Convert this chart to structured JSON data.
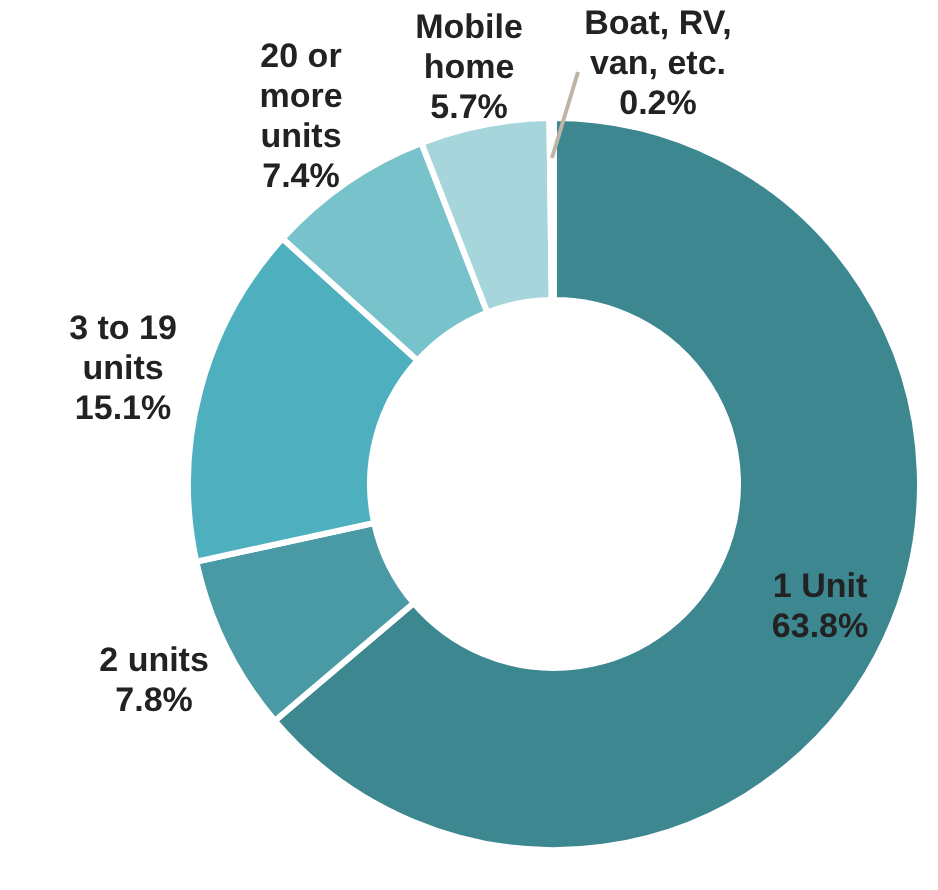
{
  "chart_data": {
    "type": "donut",
    "categories": [
      "1 Unit",
      "2 units",
      "3 to 19 units",
      "20 or more units",
      "Mobile home",
      "Boat, RV, van, etc."
    ],
    "values": [
      63.8,
      7.8,
      15.1,
      7.4,
      5.7,
      0.2
    ],
    "value_labels": [
      "63.8%",
      "7.8%",
      "15.1%",
      "7.4%",
      "5.7%",
      "0.2%"
    ],
    "colors": [
      "#3d8791",
      "#4a9aa5",
      "#4eb0bf",
      "#78c2cc",
      "#a6d5dc",
      "#c9e6ea"
    ]
  }
}
